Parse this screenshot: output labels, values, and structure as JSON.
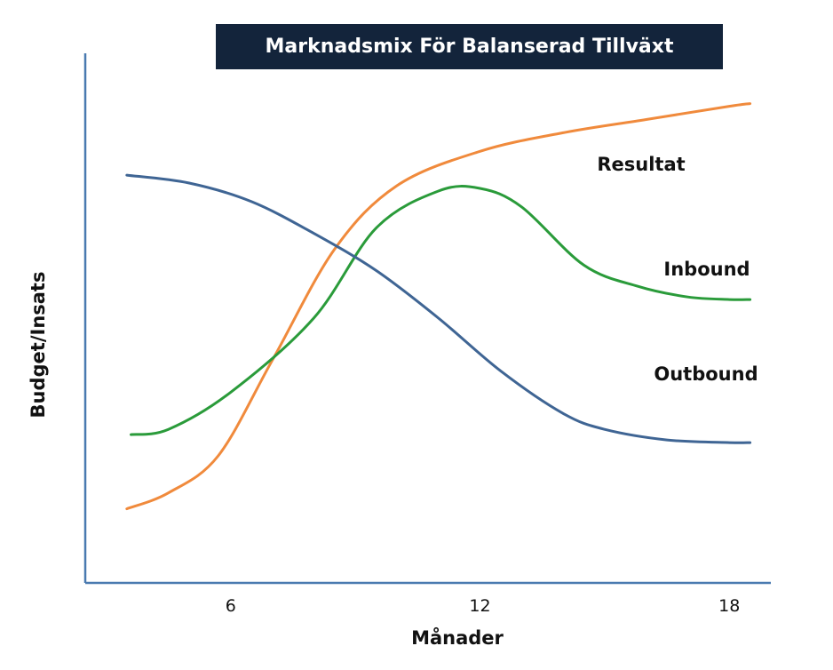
{
  "chart_data": {
    "type": "line",
    "title": "Marknadsmix För Balanserad Tillväxt",
    "xlabel": "Månader",
    "ylabel": "Budget/Insats",
    "xlim": [
      2.5,
      19
    ],
    "ylim": [
      0,
      100
    ],
    "x_ticks": [
      6,
      12,
      18
    ],
    "grid": false,
    "legend": "none",
    "series": [
      {
        "name": "Resultat",
        "color": "#f08a3c",
        "points": [
          [
            3.5,
            14
          ],
          [
            4.5,
            17
          ],
          [
            5.7,
            24
          ],
          [
            7,
            42
          ],
          [
            8.5,
            63
          ],
          [
            10,
            75
          ],
          [
            12,
            81.5
          ],
          [
            14,
            85
          ],
          [
            16,
            87.5
          ],
          [
            18,
            90
          ],
          [
            18.5,
            90.5
          ]
        ]
      },
      {
        "name": "Inbound",
        "color": "#2a9b3a",
        "points": [
          [
            3.6,
            28
          ],
          [
            4.5,
            29
          ],
          [
            6,
            36
          ],
          [
            8,
            50
          ],
          [
            9.5,
            67
          ],
          [
            11,
            74
          ],
          [
            12,
            74.5
          ],
          [
            13,
            71
          ],
          [
            14.5,
            60
          ],
          [
            15.8,
            56
          ],
          [
            17,
            54
          ],
          [
            18,
            53.5
          ],
          [
            18.5,
            53.5
          ]
        ]
      },
      {
        "name": "Outbound",
        "color": "#3f6594",
        "points": [
          [
            3.5,
            77
          ],
          [
            5,
            75.5
          ],
          [
            6.5,
            72
          ],
          [
            8,
            66
          ],
          [
            9.5,
            59
          ],
          [
            11,
            50
          ],
          [
            12.5,
            40
          ],
          [
            14,
            32
          ],
          [
            15,
            29
          ],
          [
            16.5,
            27
          ],
          [
            18,
            26.5
          ],
          [
            18.5,
            26.5
          ]
        ]
      }
    ]
  }
}
